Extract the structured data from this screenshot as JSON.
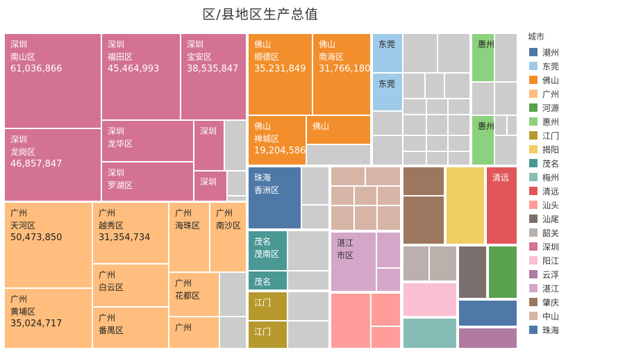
{
  "chart_data": {
    "type": "treemap",
    "title": "区/县地区生产总值",
    "legend_title": "城市",
    "legend": [
      {
        "name": "潮州",
        "color": "#4e79a7"
      },
      {
        "name": "东莞",
        "color": "#a0cbe8"
      },
      {
        "name": "佛山",
        "color": "#f28e2b"
      },
      {
        "name": "广州",
        "color": "#ffbe7d"
      },
      {
        "name": "河源",
        "color": "#59a14f"
      },
      {
        "name": "惠州",
        "color": "#8cd17d"
      },
      {
        "name": "江门",
        "color": "#b6992d"
      },
      {
        "name": "揭阳",
        "color": "#f1ce63"
      },
      {
        "name": "茂名",
        "color": "#499894"
      },
      {
        "name": "梅州",
        "color": "#86bcb6"
      },
      {
        "name": "清远",
        "color": "#e15759"
      },
      {
        "name": "汕头",
        "color": "#ff9d9a"
      },
      {
        "name": "汕尾",
        "color": "#79706e"
      },
      {
        "name": "韶关",
        "color": "#bab0ac"
      },
      {
        "name": "深圳",
        "color": "#d37295"
      },
      {
        "name": "阳江",
        "color": "#fabfd2"
      },
      {
        "name": "云浮",
        "color": "#b07aa1"
      },
      {
        "name": "湛江",
        "color": "#d4a6c8"
      },
      {
        "name": "肇庆",
        "color": "#9d7660"
      },
      {
        "name": "中山",
        "color": "#d7b5a6"
      },
      {
        "name": "珠海",
        "color": "#4e79a7"
      }
    ],
    "cells": [
      {
        "city": "深圳",
        "district": "南山区",
        "value": "61,036,866",
        "r": [
          6,
          48,
          146,
          185
        ]
      },
      {
        "city": "深圳",
        "district": "福田区",
        "value": "45,464,993",
        "r": [
          146,
          48,
          260,
          173
        ]
      },
      {
        "city": "深圳",
        "district": "宝安区",
        "value": "38,535,847",
        "r": [
          260,
          48,
          355,
          173
        ]
      },
      {
        "city": "深圳",
        "district": "龙岗区",
        "value": "46,857,847",
        "r": [
          6,
          185,
          146,
          290
        ]
      },
      {
        "city": "深圳",
        "district": "龙华区",
        "r": [
          146,
          173,
          279,
          233
        ]
      },
      {
        "city": "深圳",
        "district": "罗湖区",
        "r": [
          146,
          233,
          279,
          290
        ]
      },
      {
        "city": "深圳",
        "district": "",
        "r": [
          279,
          173,
          323,
          246
        ]
      },
      {
        "city": "",
        "r": [
          323,
          173,
          355,
          246
        ]
      },
      {
        "city": "深圳",
        "district": "",
        "r": [
          279,
          246,
          327,
          290
        ]
      },
      {
        "city": "",
        "r": [
          327,
          246,
          355,
          282
        ]
      },
      {
        "city": "",
        "r": [
          327,
          282,
          355,
          290
        ]
      },
      {
        "city": "广州",
        "district": "天河区",
        "value": "50,473,850",
        "r": [
          6,
          291,
          133,
          415
        ]
      },
      {
        "city": "广州",
        "district": "黄埔区",
        "value": "35,024,717",
        "r": [
          6,
          415,
          133,
          502
        ]
      },
      {
        "city": "广州",
        "district": "越秀区",
        "value": "31,354,734",
        "r": [
          133,
          291,
          243,
          380
        ]
      },
      {
        "city": "广州",
        "district": "白云区",
        "r": [
          133,
          380,
          243,
          442
        ]
      },
      {
        "city": "广州",
        "district": "番禺区",
        "r": [
          133,
          442,
          243,
          502
        ]
      },
      {
        "city": "广州",
        "district": "海珠区",
        "r": [
          243,
          291,
          302,
          392
        ]
      },
      {
        "city": "广州",
        "district": "南沙区",
        "r": [
          302,
          291,
          355,
          392
        ]
      },
      {
        "city": "广州",
        "district": "花都区",
        "r": [
          243,
          392,
          316,
          456
        ]
      },
      {
        "city": "广州",
        "district": "",
        "r": [
          243,
          456,
          316,
          502
        ]
      },
      {
        "city": "",
        "r": [
          316,
          392,
          355,
          456
        ]
      },
      {
        "city": "",
        "r": [
          316,
          456,
          355,
          502
        ]
      },
      {
        "city": "佛山",
        "district": "顺德区",
        "value": "35,231,849",
        "r": [
          357,
          48,
          450,
          166
        ]
      },
      {
        "city": "佛山",
        "district": "南海区",
        "value": "31,766,180",
        "r": [
          450,
          48,
          534,
          166
        ]
      },
      {
        "city": "佛山",
        "district": "禅城区",
        "value": "19,204,586",
        "r": [
          357,
          166,
          441,
          238
        ]
      },
      {
        "city": "佛山",
        "district": "",
        "r": [
          441,
          166,
          534,
          208
        ]
      },
      {
        "city": "",
        "r": [
          441,
          208,
          534,
          238
        ]
      },
      {
        "city": "东莞",
        "district": "",
        "r": [
          536,
          48,
          580,
          105
        ]
      },
      {
        "city": "东莞",
        "district": "",
        "r": [
          536,
          105,
          580,
          160
        ]
      },
      {
        "city": "",
        "r": [
          580,
          48,
          630,
          105
        ]
      },
      {
        "city": "",
        "r": [
          630,
          48,
          677,
          105
        ]
      },
      {
        "city": "",
        "r": [
          580,
          105,
          612,
          142
        ]
      },
      {
        "city": "",
        "r": [
          612,
          105,
          640,
          142
        ]
      },
      {
        "city": "",
        "r": [
          640,
          105,
          677,
          142
        ]
      },
      {
        "city": "",
        "r": [
          536,
          160,
          580,
          195
        ]
      },
      {
        "city": "",
        "r": [
          580,
          142,
          614,
          165
        ]
      },
      {
        "city": "",
        "r": [
          614,
          142,
          645,
          165
        ]
      },
      {
        "city": "",
        "r": [
          645,
          142,
          677,
          165
        ]
      },
      {
        "city": "",
        "r": [
          580,
          165,
          614,
          195
        ]
      },
      {
        "city": "",
        "r": [
          614,
          165,
          645,
          195
        ]
      },
      {
        "city": "",
        "r": [
          645,
          165,
          677,
          195
        ]
      },
      {
        "city": "",
        "r": [
          536,
          195,
          580,
          238
        ]
      },
      {
        "city": "",
        "r": [
          580,
          195,
          614,
          218
        ]
      },
      {
        "city": "",
        "r": [
          614,
          195,
          645,
          218
        ]
      },
      {
        "city": "",
        "r": [
          645,
          195,
          677,
          218
        ]
      },
      {
        "city": "",
        "r": [
          580,
          218,
          614,
          238
        ]
      },
      {
        "city": "",
        "r": [
          614,
          218,
          645,
          238
        ]
      },
      {
        "city": "",
        "r": [
          645,
          218,
          677,
          238
        ]
      },
      {
        "city": "惠州",
        "district": "",
        "r": [
          679,
          48,
          712,
          118
        ]
      },
      {
        "city": "",
        "r": [
          712,
          48,
          745,
          118
        ]
      },
      {
        "city": "",
        "r": [
          679,
          118,
          712,
          166
        ]
      },
      {
        "city": "",
        "r": [
          712,
          118,
          745,
          166
        ]
      },
      {
        "city": "惠州",
        "district": "",
        "r": [
          679,
          166,
          712,
          238
        ]
      },
      {
        "city": "",
        "r": [
          712,
          166,
          730,
          195
        ]
      },
      {
        "city": "",
        "r": [
          730,
          166,
          745,
          195
        ]
      },
      {
        "city": "",
        "r": [
          712,
          195,
          745,
          238
        ]
      },
      {
        "city": "珠海",
        "district": "香洲区",
        "r": [
          357,
          240,
          434,
          330
        ]
      },
      {
        "city": "",
        "r": [
          434,
          240,
          474,
          295
        ]
      },
      {
        "city": "",
        "r": [
          434,
          295,
          474,
          330
        ]
      },
      {
        "city": "茂名",
        "district": "茂南区",
        "r": [
          357,
          332,
          414,
          390
        ]
      },
      {
        "city": "茂名",
        "district": "",
        "r": [
          357,
          390,
          414,
          418
        ]
      },
      {
        "city": "",
        "r": [
          414,
          332,
          474,
          390
        ]
      },
      {
        "city": "",
        "r": [
          414,
          390,
          474,
          418
        ]
      },
      {
        "city": "江门",
        "district": "",
        "r": [
          357,
          420,
          414,
          462
        ]
      },
      {
        "city": "江门",
        "district": "",
        "r": [
          357,
          462,
          414,
          502
        ]
      },
      {
        "city": "",
        "r": [
          414,
          420,
          474,
          462
        ]
      },
      {
        "city": "",
        "r": [
          414,
          462,
          474,
          502
        ]
      },
      {
        "city": "",
        "c": "中山",
        "r": [
          476,
          240,
          526,
          268
        ]
      },
      {
        "city": "",
        "c": "中山",
        "r": [
          526,
          240,
          577,
          268
        ]
      },
      {
        "city": "",
        "c": "中山",
        "r": [
          476,
          268,
          510,
          296
        ]
      },
      {
        "city": "",
        "c": "中山",
        "r": [
          510,
          268,
          543,
          296
        ]
      },
      {
        "city": "",
        "c": "中山",
        "r": [
          543,
          268,
          577,
          296
        ]
      },
      {
        "city": "",
        "c": "中山",
        "r": [
          476,
          296,
          510,
          332
        ]
      },
      {
        "city": "",
        "c": "中山",
        "r": [
          510,
          296,
          543,
          332
        ]
      },
      {
        "city": "",
        "c": "中山",
        "r": [
          543,
          296,
          577,
          332
        ]
      },
      {
        "city": "湛江",
        "district": "市区",
        "r": [
          476,
          334,
          542,
          420
        ]
      },
      {
        "city": "",
        "c": "湛江",
        "r": [
          542,
          334,
          577,
          386
        ]
      },
      {
        "city": "",
        "c": "湛江",
        "r": [
          542,
          386,
          577,
          420
        ]
      },
      {
        "city": "",
        "c": "汕头",
        "r": [
          476,
          422,
          534,
          502
        ]
      },
      {
        "city": "",
        "c": "汕头",
        "r": [
          534,
          422,
          577,
          470
        ]
      },
      {
        "city": "",
        "c": "汕头",
        "r": [
          534,
          470,
          577,
          502
        ]
      },
      {
        "city": "",
        "c": "肇庆",
        "r": [
          580,
          240,
          640,
          282
        ]
      },
      {
        "city": "",
        "c": "肇庆",
        "r": [
          580,
          282,
          640,
          352
        ]
      },
      {
        "city": "",
        "c": "揭阳",
        "r": [
          642,
          240,
          698,
          352
        ]
      },
      {
        "city": "清远",
        "district": "",
        "r": [
          700,
          240,
          745,
          352
        ]
      },
      {
        "city": "",
        "c": "韶关",
        "r": [
          580,
          354,
          618,
          405
        ]
      },
      {
        "city": "",
        "c": "韶关",
        "r": [
          618,
          354,
          658,
          405
        ]
      },
      {
        "city": "",
        "c": "阳江",
        "r": [
          580,
          407,
          658,
          456
        ]
      },
      {
        "city": "",
        "c": "梅州",
        "r": [
          580,
          458,
          658,
          502
        ]
      },
      {
        "city": "",
        "c": "汕尾",
        "r": [
          660,
          354,
          701,
          430
        ]
      },
      {
        "city": "",
        "c": "河源",
        "r": [
          703,
          354,
          745,
          430
        ]
      },
      {
        "city": "",
        "c": "潮州",
        "r": [
          660,
          432,
          745,
          470
        ]
      },
      {
        "city": "",
        "c": "云浮",
        "r": [
          660,
          472,
          745,
          502
        ]
      }
    ]
  }
}
